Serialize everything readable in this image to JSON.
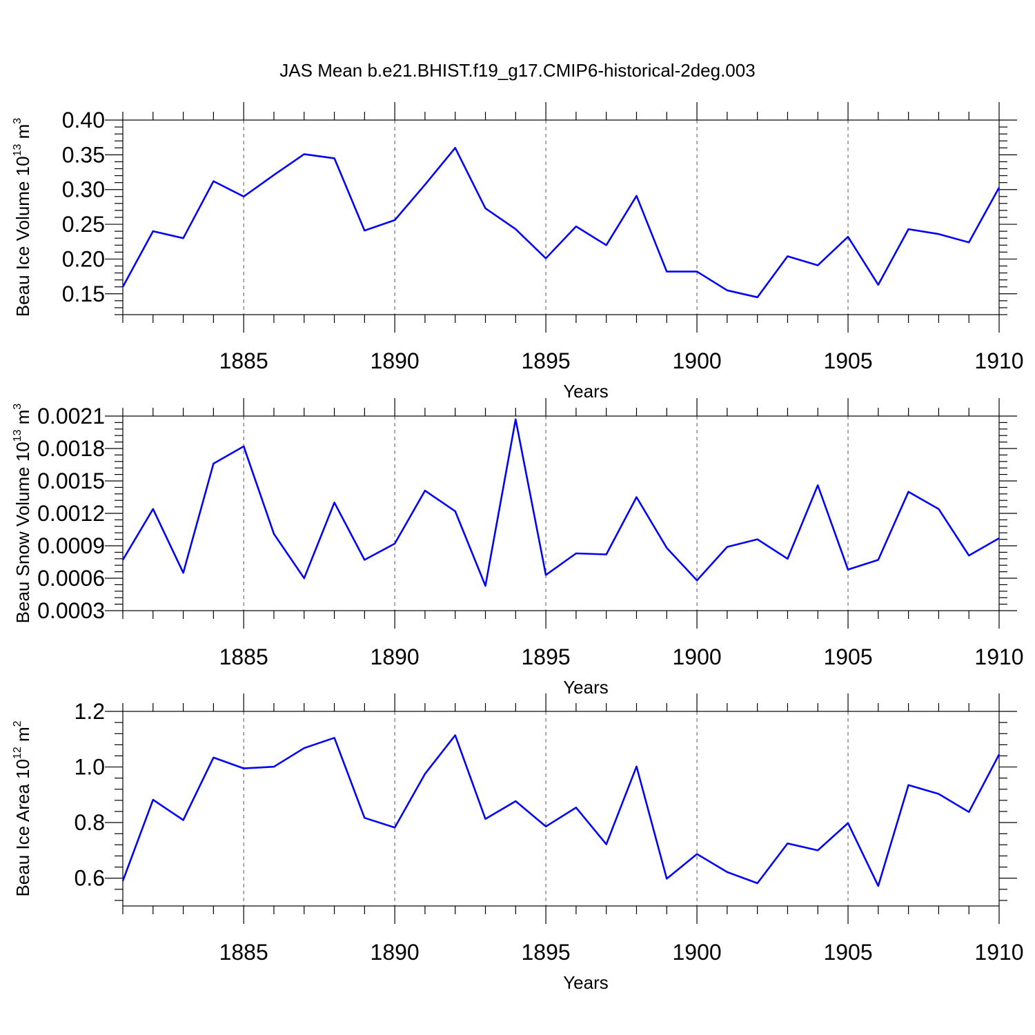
{
  "title": "JAS Mean b.e21.BHIST.f19_g17.CMIP6-historical-2deg.003",
  "colors": {
    "line": "#0000ff",
    "axis": "#000000",
    "grid": "#555555"
  },
  "chart_data": [
    {
      "type": "line",
      "title": "JAS Mean b.e21.BHIST.f19_g17.CMIP6-historical-2deg.003",
      "xlabel": "Years",
      "ylabel": "Beau Ice Volume 10",
      "ylabel_exp": "13",
      "ylabel_unit": " m",
      "ylabel_unit_exp": "3",
      "xlim": [
        1881,
        1910
      ],
      "ylim": [
        0.12,
        0.4
      ],
      "xticks": [
        1885,
        1890,
        1895,
        1900,
        1905,
        1910
      ],
      "yticks": [
        0.15,
        0.2,
        0.25,
        0.3,
        0.35,
        0.4
      ],
      "ytick_labels": [
        "0.15",
        "0.20",
        "0.25",
        "0.30",
        "0.35",
        "0.40"
      ],
      "grid": "vertical-dashed",
      "x": [
        1881,
        1882,
        1883,
        1884,
        1885,
        1886,
        1887,
        1888,
        1889,
        1890,
        1891,
        1892,
        1893,
        1894,
        1895,
        1896,
        1897,
        1898,
        1899,
        1900,
        1901,
        1902,
        1903,
        1904,
        1905,
        1906,
        1907,
        1908,
        1909,
        1910
      ],
      "values": [
        0.16,
        0.24,
        0.23,
        0.312,
        0.29,
        0.321,
        0.351,
        0.345,
        0.241,
        0.256,
        0.307,
        0.36,
        0.273,
        0.243,
        0.201,
        0.247,
        0.22,
        0.291,
        0.182,
        0.182,
        0.155,
        0.145,
        0.204,
        0.191,
        0.232,
        0.163,
        0.243,
        0.236,
        0.224,
        0.303
      ]
    },
    {
      "type": "line",
      "xlabel": "Years",
      "ylabel": "Beau Snow Volume 10",
      "ylabel_exp": "13",
      "ylabel_unit": " m",
      "ylabel_unit_exp": "3",
      "xlim": [
        1881,
        1910
      ],
      "ylim": [
        0.0003,
        0.0021
      ],
      "xticks": [
        1885,
        1890,
        1895,
        1900,
        1905,
        1910
      ],
      "yticks": [
        0.0003,
        0.0006,
        0.0009,
        0.0012,
        0.0015,
        0.0018,
        0.0021
      ],
      "ytick_labels": [
        "0.0003",
        "0.0006",
        "0.0009",
        "0.0012",
        "0.0015",
        "0.0018",
        "0.0021"
      ],
      "grid": "vertical-dashed",
      "x": [
        1881,
        1882,
        1883,
        1884,
        1885,
        1886,
        1887,
        1888,
        1889,
        1890,
        1891,
        1892,
        1893,
        1894,
        1895,
        1896,
        1897,
        1898,
        1899,
        1900,
        1901,
        1902,
        1903,
        1904,
        1905,
        1906,
        1907,
        1908,
        1909,
        1910
      ],
      "values": [
        0.00077,
        0.00124,
        0.00065,
        0.00166,
        0.00182,
        0.00101,
        0.0006,
        0.0013,
        0.00077,
        0.00092,
        0.00141,
        0.00122,
        0.00053,
        0.00207,
        0.00063,
        0.00083,
        0.00082,
        0.00135,
        0.00088,
        0.00058,
        0.00089,
        0.00096,
        0.00078,
        0.00146,
        0.00068,
        0.00077,
        0.0014,
        0.00124,
        0.00081,
        0.00097
      ]
    },
    {
      "type": "line",
      "xlabel": "Years",
      "ylabel": "Beau Ice Area 10",
      "ylabel_exp": "12",
      "ylabel_unit": " m",
      "ylabel_unit_exp": "2",
      "xlim": [
        1881,
        1910
      ],
      "ylim": [
        0.5,
        1.2
      ],
      "xticks": [
        1885,
        1890,
        1895,
        1900,
        1905,
        1910
      ],
      "yticks": [
        0.6,
        0.8,
        1.0,
        1.2
      ],
      "ytick_labels": [
        "0.6",
        "0.8",
        "1.0",
        "1.2"
      ],
      "grid": "vertical-dashed",
      "x": [
        1881,
        1882,
        1883,
        1884,
        1885,
        1886,
        1887,
        1888,
        1889,
        1890,
        1891,
        1892,
        1893,
        1894,
        1895,
        1896,
        1897,
        1898,
        1899,
        1900,
        1901,
        1902,
        1903,
        1904,
        1905,
        1906,
        1907,
        1908,
        1909,
        1910
      ],
      "values": [
        0.59,
        0.882,
        0.809,
        1.034,
        0.995,
        1.001,
        1.068,
        1.105,
        0.817,
        0.782,
        0.975,
        1.114,
        0.813,
        0.877,
        0.786,
        0.854,
        0.722,
        1.002,
        0.598,
        0.687,
        0.622,
        0.582,
        0.725,
        0.7,
        0.798,
        0.572,
        0.935,
        0.903,
        0.838,
        1.045
      ]
    }
  ]
}
